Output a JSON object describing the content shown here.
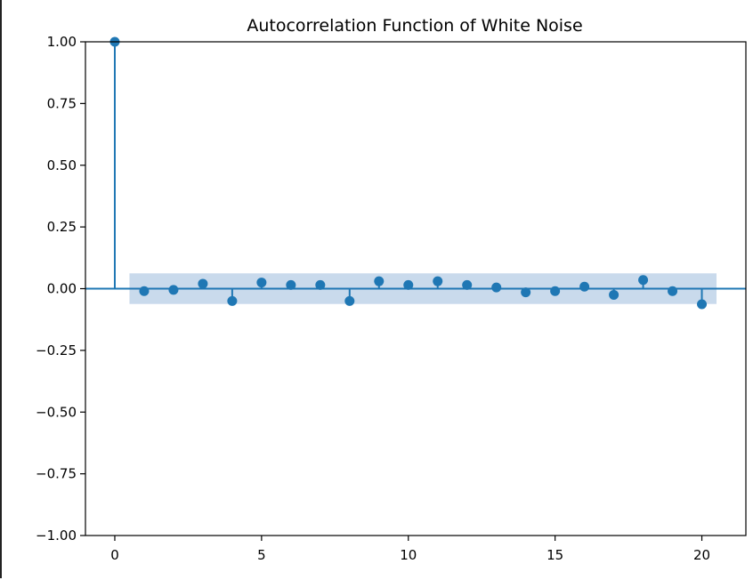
{
  "chart_data": {
    "type": "stem",
    "title": "Autocorrelation Function of White Noise",
    "xlabel": "",
    "ylabel": "",
    "xlim": [
      -1,
      21.5
    ],
    "ylim": [
      -1.0,
      1.0
    ],
    "x_ticks": [
      "0",
      "5",
      "10",
      "15",
      "20"
    ],
    "x_tick_values": [
      0,
      5,
      10,
      15,
      20
    ],
    "y_ticks": [
      "1.00",
      "0.75",
      "0.50",
      "0.25",
      "0.00",
      "−0.25",
      "−0.50",
      "−0.75",
      "−1.00"
    ],
    "y_tick_values": [
      1.0,
      0.75,
      0.5,
      0.25,
      0.0,
      -0.25,
      -0.5,
      -0.75,
      -1.0
    ],
    "lags": [
      0,
      1,
      2,
      3,
      4,
      5,
      6,
      7,
      8,
      9,
      10,
      11,
      12,
      13,
      14,
      15,
      16,
      17,
      18,
      19,
      20
    ],
    "values": [
      1.0,
      -0.01,
      -0.005,
      0.02,
      -0.05,
      0.025,
      0.015,
      0.015,
      -0.05,
      0.03,
      0.015,
      0.03,
      0.015,
      0.005,
      -0.015,
      -0.01,
      0.008,
      -0.025,
      0.035,
      -0.01,
      -0.063
    ],
    "confidence_interval": {
      "x_range": [
        0.5,
        20.5
      ],
      "lower": -0.062,
      "upper": 0.062
    },
    "grid": false,
    "legend": "none",
    "colors": {
      "stem": "#1f77b4",
      "ci_band": "#c3d6ea",
      "axes": "#000000"
    }
  }
}
